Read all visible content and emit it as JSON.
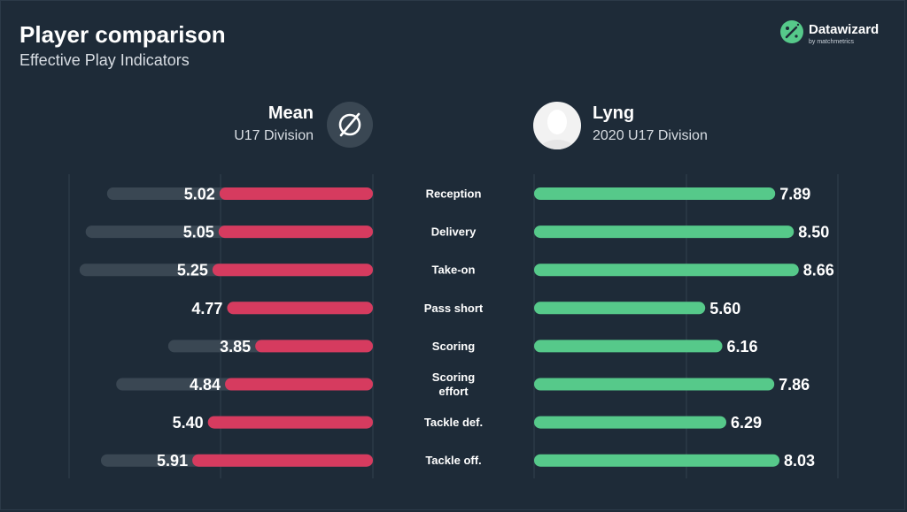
{
  "header": {
    "title": "Player comparison",
    "subtitle": "Effective Play Indicators"
  },
  "brand": {
    "name": "Datawizard",
    "tagline": "by matchmetrics",
    "icon": "datawizard-logo-icon"
  },
  "left_entity": {
    "name": "Mean",
    "division": "U17 Division",
    "icon": "average-symbol-icon"
  },
  "right_entity": {
    "name": "Lyng",
    "division": "2020 U17 Division",
    "icon": "player-avatar-icon"
  },
  "colors": {
    "background": "#1e2b38",
    "mean_bar": "#d63b5f",
    "player_bar": "#56c98a",
    "track": "#3a4753",
    "grid": "#33414e",
    "text": "#ffffff"
  },
  "chart_data": {
    "type": "bar",
    "orientation": "horizontal-diverging",
    "categories": [
      "Reception",
      "Delivery",
      "Take-on",
      "Pass short",
      "Scoring",
      "Scoring effort",
      "Tackle def.",
      "Tackle off."
    ],
    "category_display": [
      [
        "Reception"
      ],
      [
        "Delivery"
      ],
      [
        "Take-on"
      ],
      [
        "Pass short"
      ],
      [
        "Scoring"
      ],
      [
        "Scoring",
        "effort"
      ],
      [
        "Tackle def."
      ],
      [
        "Tackle off."
      ]
    ],
    "series": [
      {
        "name": "Mean",
        "side": "left",
        "values": [
          5.02,
          5.05,
          5.25,
          4.77,
          3.85,
          4.84,
          5.4,
          5.91
        ],
        "labels": [
          "5.02",
          "5.05",
          "5.25",
          "4.77",
          "3.85",
          "4.84",
          "5.40",
          "5.91"
        ]
      },
      {
        "name": "Lyng",
        "side": "right",
        "values": [
          7.89,
          8.5,
          8.66,
          5.6,
          6.16,
          7.86,
          6.29,
          8.03
        ],
        "labels": [
          "7.89",
          "8.50",
          "8.66",
          "5.60",
          "6.16",
          "7.86",
          "6.29",
          "8.03"
        ]
      }
    ],
    "background_tracks": {
      "side": "left",
      "values": [
        8.7,
        9.4,
        9.6,
        4.77,
        6.7,
        8.4,
        5.4,
        8.9
      ]
    },
    "xlim": [
      0,
      10
    ],
    "grid": true,
    "legend": "none"
  }
}
